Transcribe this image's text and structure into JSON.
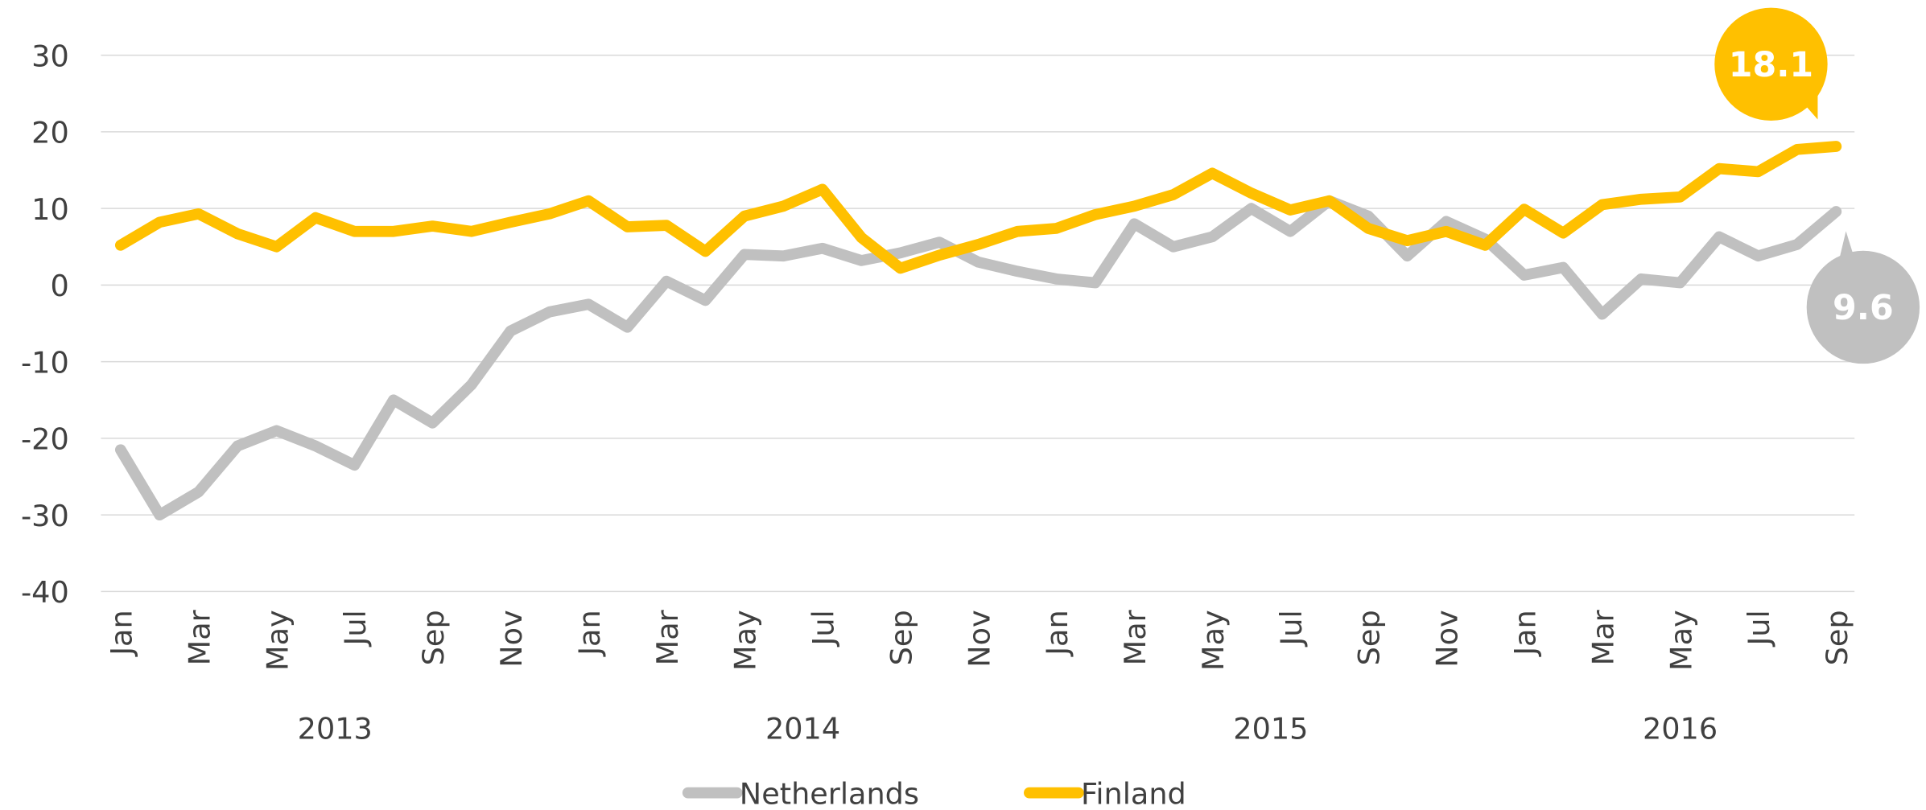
{
  "chart_data": {
    "type": "line",
    "categories": [
      "Jan",
      null,
      "Mar",
      null,
      "May",
      null,
      "Jul",
      null,
      "Sep",
      null,
      "Nov",
      null,
      "Jan",
      null,
      "Mar",
      null,
      "May",
      null,
      "Jul",
      null,
      "Sep",
      null,
      "Nov",
      null,
      "Jan",
      null,
      "Mar",
      null,
      "May",
      null,
      "Jul",
      null,
      "Sep",
      null,
      "Nov",
      null,
      "Jan",
      null,
      "Mar",
      null,
      "May",
      null,
      "Jul",
      null,
      "Sep"
    ],
    "year_labels": [
      "2013",
      "2014",
      "2015",
      "2016"
    ],
    "series": [
      {
        "name": "Netherlands",
        "color": "#c0c0c0",
        "values": [
          -21.5,
          -30,
          -27,
          -21,
          -19,
          -21,
          -23.5,
          -15,
          -18,
          -13,
          -6,
          -3.5,
          -2.5,
          -5.5,
          0.5,
          -2,
          4,
          3.8,
          4.8,
          3.2,
          4.2,
          5.6,
          3,
          1.8,
          0.8,
          0.3,
          8,
          5,
          6.3,
          10,
          7,
          11,
          9,
          3.8,
          8.3,
          6,
          1.3,
          2.3,
          -3.8,
          0.8,
          0.3,
          6.3,
          3.8,
          5.3,
          9.6
        ]
      },
      {
        "name": "Finland",
        "color": "#ffc000",
        "values": [
          5.2,
          8.2,
          9.3,
          6.7,
          5,
          8.8,
          7,
          7,
          7.7,
          7,
          8.2,
          9.3,
          11,
          7.6,
          7.8,
          4.4,
          9,
          10.3,
          12.5,
          6.2,
          2.2,
          3.9,
          5.3,
          7,
          7.4,
          9.2,
          10.3,
          11.8,
          14.6,
          12,
          9.8,
          11,
          7.4,
          5.8,
          7,
          5.2,
          9.9,
          6.8,
          10.5,
          11.2,
          11.5,
          15.2,
          14.8,
          17.7,
          18.1
        ]
      }
    ],
    "ylim": [
      -40,
      30
    ],
    "yticks": [
      -40,
      -30,
      -20,
      -10,
      0,
      10,
      20,
      30
    ],
    "grid": true
  }
}
